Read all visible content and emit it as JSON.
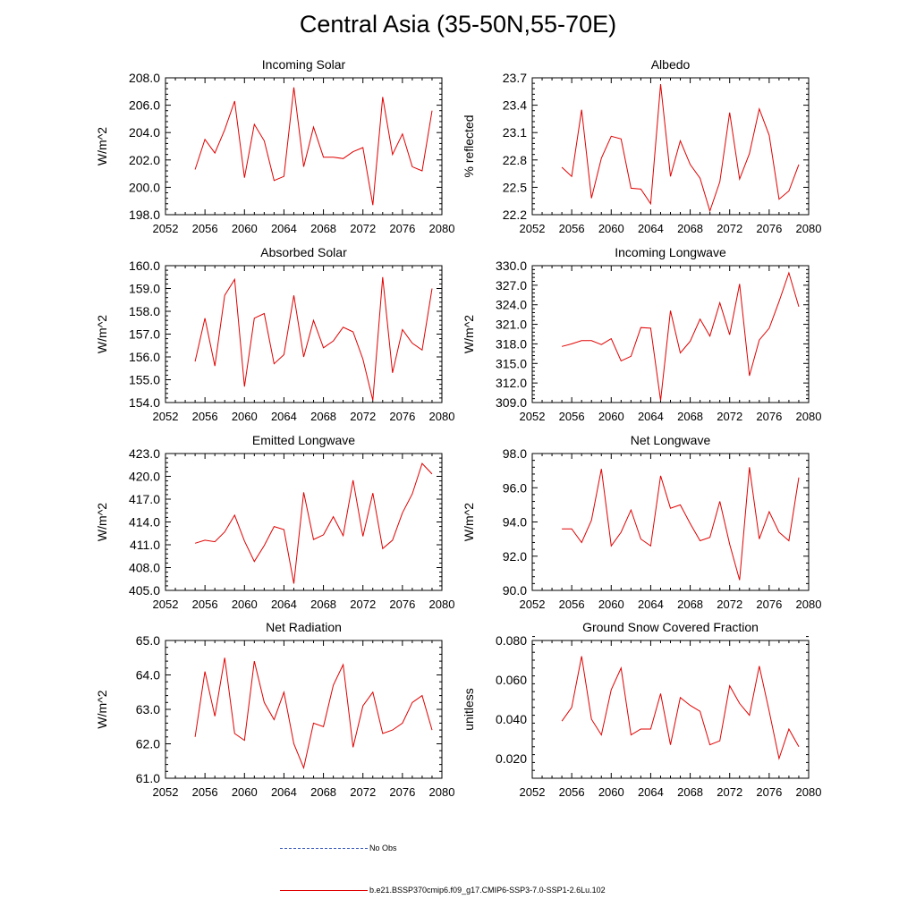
{
  "title": "Central Asia (35-50N,55-70E)",
  "legend": [
    {
      "label": "No Obs",
      "style": "dashed",
      "color": "#4060c0"
    },
    {
      "label": "b.e21.BSSP370cmip6.f09_g17.CMIP6-SSP3-7.0-SSP1-2.6Lu.102",
      "style": "solid",
      "color": "#e00000"
    }
  ],
  "chart_data": [
    {
      "type": "line",
      "title": "Incoming Solar",
      "xlabel": "",
      "ylabel": "W/m^2",
      "xlim": [
        2052,
        2080
      ],
      "xticks": [
        "2052",
        "2056",
        "2060",
        "2064",
        "2068",
        "2072",
        "2076",
        "2080"
      ],
      "ylim": [
        198,
        208
      ],
      "yticks": [
        "198.0",
        "200.0",
        "202.0",
        "204.0",
        "206.0",
        "208.0"
      ],
      "series": [
        {
          "color": "#e00000",
          "x": [
            2055,
            2056,
            2057,
            2058,
            2059,
            2060,
            2061,
            2062,
            2063,
            2064,
            2065,
            2066,
            2067,
            2068,
            2069,
            2070,
            2071,
            2072,
            2073,
            2074,
            2075,
            2076,
            2077,
            2078,
            2079
          ],
          "values": [
            201.3,
            203.5,
            202.5,
            204.2,
            206.3,
            200.7,
            204.6,
            203.4,
            200.5,
            200.8,
            207.3,
            201.5,
            204.4,
            202.2,
            202.2,
            202.1,
            202.6,
            202.9,
            198.7,
            206.6,
            202.4,
            203.9,
            201.5,
            201.2,
            205.6
          ]
        }
      ]
    },
    {
      "type": "line",
      "title": "Albedo",
      "xlabel": "",
      "ylabel": "% reflected",
      "xlim": [
        2052,
        2080
      ],
      "xticks": [
        "2052",
        "2056",
        "2060",
        "2064",
        "2068",
        "2072",
        "2076",
        "2080"
      ],
      "ylim": [
        22.2,
        23.7
      ],
      "yticks": [
        "22.2",
        "22.5",
        "22.8",
        "23.1",
        "23.4",
        "23.7"
      ],
      "series": [
        {
          "color": "#e00000",
          "x": [
            2055,
            2056,
            2057,
            2058,
            2059,
            2060,
            2061,
            2062,
            2063,
            2064,
            2065,
            2066,
            2067,
            2068,
            2069,
            2070,
            2071,
            2072,
            2073,
            2074,
            2075,
            2076,
            2077,
            2078,
            2079
          ],
          "values": [
            22.72,
            22.62,
            23.35,
            22.38,
            22.82,
            23.06,
            23.03,
            22.49,
            22.48,
            22.32,
            23.63,
            22.62,
            23.01,
            22.75,
            22.6,
            22.24,
            22.56,
            23.32,
            22.59,
            22.87,
            23.36,
            23.07,
            22.37,
            22.46,
            22.75
          ]
        }
      ]
    },
    {
      "type": "line",
      "title": "Absorbed Solar",
      "xlabel": "",
      "ylabel": "W/m^2",
      "xlim": [
        2052,
        2080
      ],
      "xticks": [
        "2052",
        "2056",
        "2060",
        "2064",
        "2068",
        "2072",
        "2076",
        "2080"
      ],
      "ylim": [
        154,
        160
      ],
      "yticks": [
        "154.0",
        "155.0",
        "156.0",
        "157.0",
        "158.0",
        "159.0",
        "160.0"
      ],
      "series": [
        {
          "color": "#e00000",
          "x": [
            2055,
            2056,
            2057,
            2058,
            2059,
            2060,
            2061,
            2062,
            2063,
            2064,
            2065,
            2066,
            2067,
            2068,
            2069,
            2070,
            2071,
            2072,
            2073,
            2074,
            2075,
            2076,
            2077,
            2078,
            2079
          ],
          "values": [
            155.8,
            157.7,
            155.6,
            158.7,
            159.4,
            154.7,
            157.7,
            157.9,
            155.7,
            156.1,
            158.7,
            156.0,
            157.6,
            156.4,
            156.7,
            157.3,
            157.1,
            155.9,
            154.1,
            159.5,
            155.3,
            157.2,
            156.6,
            156.3,
            159.0
          ]
        }
      ]
    },
    {
      "type": "line",
      "title": "Incoming Longwave",
      "xlabel": "",
      "ylabel": "W/m^2",
      "xlim": [
        2052,
        2080
      ],
      "xticks": [
        "2052",
        "2056",
        "2060",
        "2064",
        "2068",
        "2072",
        "2076",
        "2080"
      ],
      "ylim": [
        309,
        330
      ],
      "yticks": [
        "309.0",
        "312.0",
        "315.0",
        "318.0",
        "321.0",
        "324.0",
        "327.0",
        "330.0"
      ],
      "series": [
        {
          "color": "#e00000",
          "x": [
            2055,
            2056,
            2057,
            2058,
            2059,
            2060,
            2061,
            2062,
            2063,
            2064,
            2065,
            2066,
            2067,
            2068,
            2069,
            2070,
            2071,
            2072,
            2073,
            2074,
            2075,
            2076,
            2077,
            2078,
            2079
          ],
          "values": [
            317.6,
            318.0,
            318.5,
            318.5,
            317.9,
            318.8,
            315.4,
            316.1,
            320.5,
            320.4,
            309.3,
            323.1,
            316.6,
            318.4,
            321.8,
            319.2,
            324.3,
            319.4,
            327.2,
            313.1,
            318.6,
            320.4,
            324.5,
            328.9,
            323.7
          ]
        }
      ]
    },
    {
      "type": "line",
      "title": "Emitted Longwave",
      "xlabel": "",
      "ylabel": "W/m^2",
      "xlim": [
        2052,
        2080
      ],
      "xticks": [
        "2052",
        "2056",
        "2060",
        "2064",
        "2068",
        "2072",
        "2076",
        "2080"
      ],
      "ylim": [
        405,
        423
      ],
      "yticks": [
        "405.0",
        "408.0",
        "411.0",
        "414.0",
        "417.0",
        "420.0",
        "423.0"
      ],
      "series": [
        {
          "color": "#e00000",
          "x": [
            2055,
            2056,
            2057,
            2058,
            2059,
            2060,
            2061,
            2062,
            2063,
            2064,
            2065,
            2066,
            2067,
            2068,
            2069,
            2070,
            2071,
            2072,
            2073,
            2074,
            2075,
            2076,
            2077,
            2078,
            2079
          ],
          "values": [
            411.2,
            411.6,
            411.4,
            412.7,
            414.9,
            411.5,
            408.8,
            410.9,
            413.4,
            413.0,
            405.9,
            417.9,
            411.7,
            412.3,
            414.7,
            412.2,
            419.5,
            412.1,
            417.8,
            410.5,
            411.6,
            415.2,
            417.7,
            421.7,
            420.3
          ]
        }
      ]
    },
    {
      "type": "line",
      "title": "Net Longwave",
      "xlabel": "",
      "ylabel": "W/m^2",
      "xlim": [
        2052,
        2080
      ],
      "xticks": [
        "2052",
        "2056",
        "2060",
        "2064",
        "2068",
        "2072",
        "2076",
        "2080"
      ],
      "ylim": [
        90,
        98
      ],
      "yticks": [
        "90.0",
        "92.0",
        "94.0",
        "96.0",
        "98.0"
      ],
      "series": [
        {
          "color": "#e00000",
          "x": [
            2055,
            2056,
            2057,
            2058,
            2059,
            2060,
            2061,
            2062,
            2063,
            2064,
            2065,
            2066,
            2067,
            2068,
            2069,
            2070,
            2071,
            2072,
            2073,
            2074,
            2075,
            2076,
            2077,
            2078,
            2079
          ],
          "values": [
            93.6,
            93.6,
            92.8,
            94.1,
            97.1,
            92.6,
            93.4,
            94.7,
            93.0,
            92.6,
            96.7,
            94.8,
            95.0,
            93.9,
            92.9,
            93.1,
            95.2,
            92.7,
            90.6,
            97.2,
            93.0,
            94.6,
            93.4,
            92.9,
            96.6
          ]
        }
      ]
    },
    {
      "type": "line",
      "title": "Net Radiation",
      "xlabel": "",
      "ylabel": "W/m^2",
      "xlim": [
        2052,
        2080
      ],
      "xticks": [
        "2052",
        "2056",
        "2060",
        "2064",
        "2068",
        "2072",
        "2076",
        "2080"
      ],
      "ylim": [
        61,
        65
      ],
      "yticks": [
        "61.0",
        "62.0",
        "63.0",
        "64.0",
        "65.0"
      ],
      "series": [
        {
          "color": "#e00000",
          "x": [
            2055,
            2056,
            2057,
            2058,
            2059,
            2060,
            2061,
            2062,
            2063,
            2064,
            2065,
            2066,
            2067,
            2068,
            2069,
            2070,
            2071,
            2072,
            2073,
            2074,
            2075,
            2076,
            2077,
            2078,
            2079
          ],
          "values": [
            62.2,
            64.1,
            62.8,
            64.5,
            62.3,
            62.1,
            64.4,
            63.2,
            62.7,
            63.5,
            62.0,
            61.3,
            62.6,
            62.5,
            63.7,
            64.3,
            61.9,
            63.1,
            63.5,
            62.3,
            62.4,
            62.6,
            63.2,
            63.4,
            62.4
          ]
        }
      ]
    },
    {
      "type": "line",
      "title": "Ground Snow Covered Fraction",
      "xlabel": "",
      "ylabel": "unitless",
      "xlim": [
        2052,
        2080
      ],
      "xticks": [
        "2052",
        "2056",
        "2060",
        "2064",
        "2068",
        "2072",
        "2076",
        "2080"
      ],
      "ylim": [
        0.01,
        0.08
      ],
      "yticks": [
        "0.020",
        "0.040",
        "0.060",
        "0.080"
      ],
      "series": [
        {
          "color": "#e00000",
          "x": [
            2055,
            2056,
            2057,
            2058,
            2059,
            2060,
            2061,
            2062,
            2063,
            2064,
            2065,
            2066,
            2067,
            2068,
            2069,
            2070,
            2071,
            2072,
            2073,
            2074,
            2075,
            2076,
            2077,
            2078,
            2079
          ],
          "values": [
            0.039,
            0.046,
            0.072,
            0.04,
            0.032,
            0.055,
            0.066,
            0.032,
            0.035,
            0.035,
            0.053,
            0.027,
            0.051,
            0.047,
            0.044,
            0.027,
            0.029,
            0.057,
            0.048,
            0.042,
            0.067,
            0.044,
            0.02,
            0.035,
            0.026
          ]
        }
      ]
    }
  ]
}
